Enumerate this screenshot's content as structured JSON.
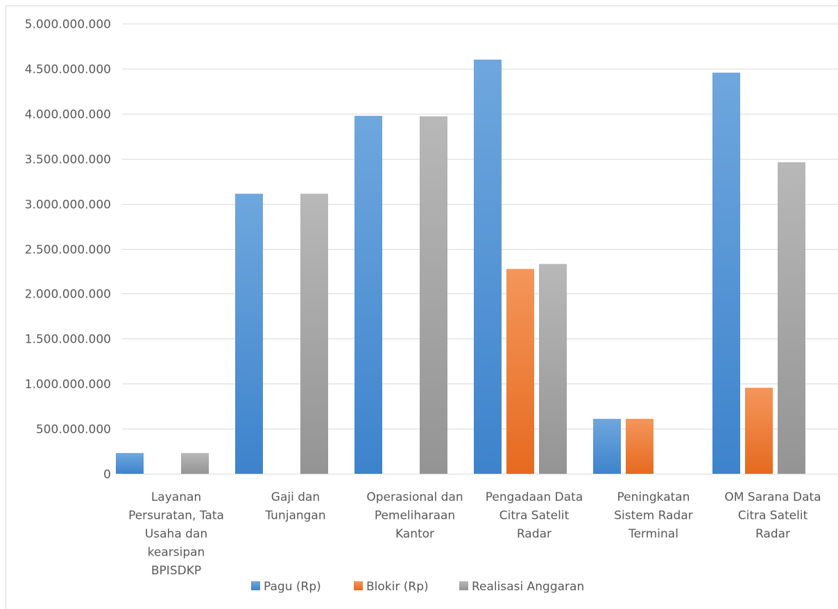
{
  "chart_data": {
    "type": "bar",
    "categories": [
      [
        "Layanan",
        "Persuratan, Tata",
        "Usaha dan",
        "kearsipan",
        "BPISDKP"
      ],
      [
        "Gaji dan",
        "Tunjangan"
      ],
      [
        "Operasional dan",
        "Pemeliharaan",
        "Kantor"
      ],
      [
        "Pengadaan Data",
        "Citra Satelit",
        "Radar"
      ],
      [
        "Peningkatan",
        "Sistem Radar",
        "Terminal"
      ],
      [
        "OM Sarana Data",
        "Citra Satelit",
        "Radar"
      ]
    ],
    "series": [
      {
        "name": "Pagu (Rp)",
        "color": "#4a8fd4",
        "values": [
          230000000,
          3110000000,
          3975000000,
          4600000000,
          610000000,
          4455000000
        ]
      },
      {
        "name": "Blokir (Rp)",
        "color": "#ed7d31",
        "values": [
          0,
          0,
          0,
          2275000000,
          610000000,
          955000000
        ]
      },
      {
        "name": "Realisasi Anggaran",
        "color": "#a5a5a5",
        "values": [
          230000000,
          3110000000,
          3970000000,
          2330000000,
          0,
          3460000000
        ]
      }
    ],
    "yticks": [
      "0",
      "500.000.000",
      "1.000.000.000",
      "1.500.000.000",
      "2.000.000.000",
      "2.500.000.000",
      "3.000.000.000",
      "3.500.000.000",
      "4.000.000.000",
      "4.500.000.000",
      "5.000.000.000"
    ],
    "ylim": [
      0,
      5000000000
    ],
    "ytick_step": 500000000,
    "grid": true,
    "legend": "bottom",
    "colors": {
      "grid": "#d9d9d9",
      "axis_text": "#595959",
      "border": "#d9d9d9"
    }
  }
}
